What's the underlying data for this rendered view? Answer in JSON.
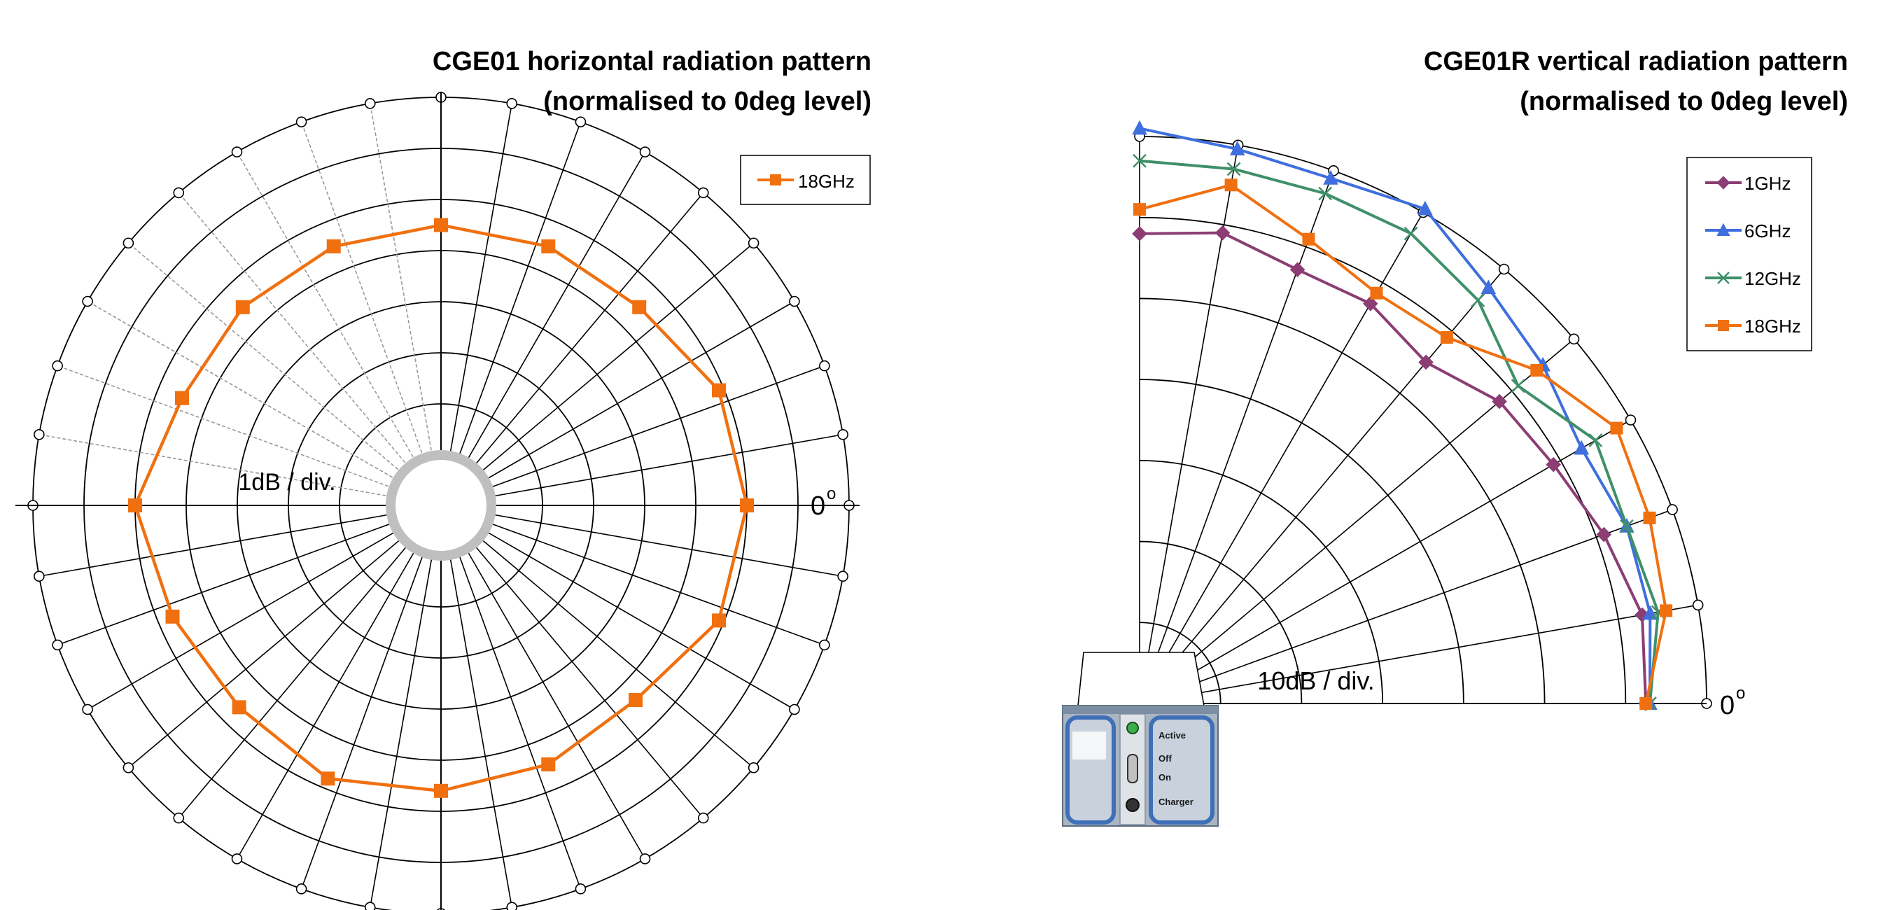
{
  "chart_data": [
    {
      "type": "polar-line",
      "title": "CGE01 horizontal radiation pattern",
      "subtitle": "(normalised to 0deg level)",
      "scale_label": "1dB / div.",
      "angle_label": "0",
      "angle_label_sup": "o",
      "angle_range_deg": [
        0,
        360
      ],
      "angular_grid_step_deg": 10,
      "radial_divisions": 7,
      "legend_position": "top-right",
      "series": [
        {
          "name": "18GHz",
          "color": "#f07010",
          "marker": "square",
          "angles_deg": [
            0,
            22.5,
            45,
            67.5,
            90,
            112.5,
            135,
            157.5,
            180,
            202.5,
            225,
            247.5,
            270,
            292.5,
            315,
            337.5
          ],
          "r_div": [
            5,
            4.9,
            4.5,
            4.5,
            4.5,
            4.5,
            4.5,
            4.5,
            5,
            4.7,
            4.6,
            4.8,
            4.6,
            4.5,
            4.4,
            4.9
          ]
        }
      ]
    },
    {
      "type": "polar-line",
      "title": "CGE01R vertical radiation pattern",
      "subtitle": "(normalised to 0deg level)",
      "scale_label": "10dB / div.",
      "angle_label": "0",
      "angle_label_sup": "o",
      "angle_range_deg": [
        0,
        90
      ],
      "angular_grid_step_deg": 10,
      "radial_divisions": 7,
      "legend_position": "top-right",
      "series": [
        {
          "name": "1GHz",
          "color": "#8b3d74",
          "marker": "diamond",
          "angles_deg": [
            0,
            10,
            20,
            30,
            40,
            50,
            60,
            70,
            80,
            90
          ],
          "r_div": [
            6.25,
            6.3,
            6.1,
            5.9,
            5.8,
            5.5,
            5.7,
            5.7,
            5.9,
            5.8
          ]
        },
        {
          "name": "6GHz",
          "color": "#3f6fde",
          "marker": "triangle",
          "angles_deg": [
            0,
            10,
            20,
            30,
            40,
            50,
            60,
            70,
            80,
            90
          ],
          "r_div": [
            6.3,
            6.4,
            6.4,
            6.3,
            6.5,
            6.7,
            7.05,
            6.9,
            6.95,
            7.1
          ]
        },
        {
          "name": "12GHz",
          "color": "#3f9069",
          "marker": "x",
          "angles_deg": [
            0,
            10,
            20,
            30,
            40,
            50,
            60,
            70,
            80,
            90
          ],
          "r_div": [
            6.3,
            6.5,
            6.4,
            6.5,
            6.1,
            6.5,
            6.7,
            6.7,
            6.7,
            6.7
          ]
        },
        {
          "name": "18GHz",
          "color": "#f07010",
          "marker": "square",
          "angles_deg": [
            0,
            10,
            20,
            30,
            40,
            50,
            60,
            70,
            80,
            90
          ],
          "r_div": [
            6.25,
            6.6,
            6.7,
            6.8,
            6.4,
            5.9,
            5.85,
            6.1,
            6.5,
            6.1
          ]
        }
      ]
    }
  ],
  "device": {
    "labels": [
      "Active",
      "Off",
      "On",
      "Charger"
    ],
    "indicator_color": "#3cb04a",
    "body_color": "#aab5c2",
    "accent_color": "#3f6fb8"
  }
}
